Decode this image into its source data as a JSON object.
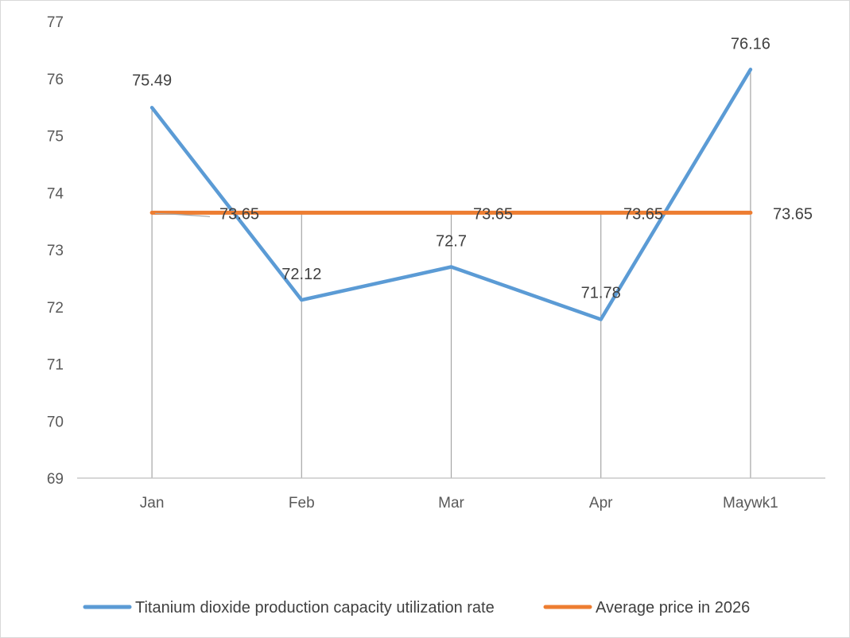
{
  "chart_data": {
    "type": "line",
    "categories": [
      "Jan",
      "Feb",
      "Mar",
      "Apr",
      "Maywk1"
    ],
    "ylim": [
      69,
      77
    ],
    "yticks": [
      69,
      70,
      71,
      72,
      73,
      74,
      75,
      76,
      77
    ],
    "grid": "vertical drop lines",
    "legend_position": "bottom",
    "series": [
      {
        "name": "Titanium dioxide production capacity utilization rate",
        "color": "#5b9bd5",
        "values": [
          75.49,
          72.12,
          72.7,
          71.78,
          76.16
        ]
      },
      {
        "name": "Average price in 2026",
        "color": "#ed7d31",
        "values": [
          73.65,
          73.65,
          73.65,
          73.65,
          73.65
        ]
      }
    ]
  }
}
